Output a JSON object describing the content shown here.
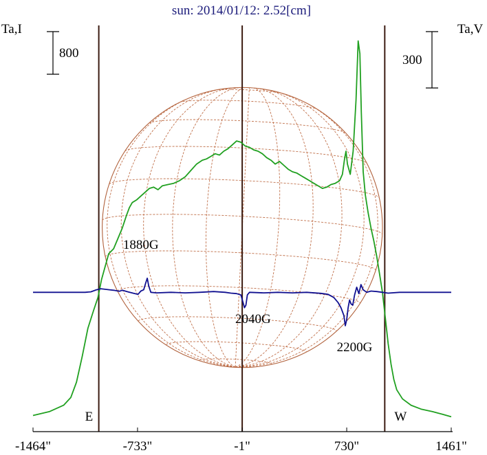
{
  "chart_data": {
    "type": "line",
    "title": "sun: 2014/01/12: 2.52[cm]",
    "left_axis_label": "Ta,I",
    "right_axis_label": "Ta,V",
    "left_scale_bar": "800",
    "right_scale_bar": "300",
    "x_ticks": [
      "-1464\"",
      "-733\"",
      "-1\"",
      "730\"",
      "1461\""
    ],
    "x_tick_values": [
      -1464,
      -733,
      -1,
      730,
      1461
    ],
    "xlim": [
      -1464,
      1461
    ],
    "limb_marks": [
      {
        "label": "E",
        "x": -1004
      },
      {
        "label": "W",
        "x": 996
      }
    ],
    "solar_disk_radius_arcsec": 980,
    "vertical_lines_x": [
      -1004,
      -1,
      996
    ],
    "annotations": [
      {
        "text": "1880G",
        "x": -710,
        "y": 0.67
      },
      {
        "text": "2040G",
        "x": 75,
        "y": 0.38
      },
      {
        "text": "2200G",
        "x": 785,
        "y": 0.27
      }
    ],
    "series": [
      {
        "name": "I",
        "color": "#20a020",
        "points": [
          [
            -1464,
            0.02
          ],
          [
            -1350,
            0.035
          ],
          [
            -1250,
            0.06
          ],
          [
            -1200,
            0.09
          ],
          [
            -1160,
            0.15
          ],
          [
            -1120,
            0.25
          ],
          [
            -1080,
            0.36
          ],
          [
            -1040,
            0.43
          ],
          [
            -1010,
            0.48
          ],
          [
            -985,
            0.55
          ],
          [
            -960,
            0.6
          ],
          [
            -935,
            0.65
          ],
          [
            -900,
            0.67
          ],
          [
            -870,
            0.71
          ],
          [
            -840,
            0.75
          ],
          [
            -810,
            0.8
          ],
          [
            -790,
            0.83
          ],
          [
            -770,
            0.85
          ],
          [
            -740,
            0.86
          ],
          [
            -710,
            0.875
          ],
          [
            -680,
            0.89
          ],
          [
            -650,
            0.905
          ],
          [
            -620,
            0.91
          ],
          [
            -590,
            0.9
          ],
          [
            -560,
            0.915
          ],
          [
            -520,
            0.92
          ],
          [
            -480,
            0.925
          ],
          [
            -440,
            0.935
          ],
          [
            -400,
            0.95
          ],
          [
            -360,
            0.975
          ],
          [
            -320,
            1.0
          ],
          [
            -280,
            1.015
          ],
          [
            -250,
            1.02
          ],
          [
            -220,
            1.03
          ],
          [
            -190,
            1.04
          ],
          [
            -160,
            1.035
          ],
          [
            -130,
            1.05
          ],
          [
            -100,
            1.06
          ],
          [
            -70,
            1.075
          ],
          [
            -40,
            1.09
          ],
          [
            -10,
            1.085
          ],
          [
            20,
            1.07
          ],
          [
            50,
            1.065
          ],
          [
            80,
            1.055
          ],
          [
            110,
            1.05
          ],
          [
            140,
            1.04
          ],
          [
            170,
            1.025
          ],
          [
            200,
            1.015
          ],
          [
            230,
            1.0
          ],
          [
            260,
            1.01
          ],
          [
            290,
            0.995
          ],
          [
            320,
            0.98
          ],
          [
            350,
            0.97
          ],
          [
            380,
            0.965
          ],
          [
            410,
            0.955
          ],
          [
            440,
            0.945
          ],
          [
            470,
            0.935
          ],
          [
            500,
            0.925
          ],
          [
            530,
            0.915
          ],
          [
            560,
            0.905
          ],
          [
            590,
            0.91
          ],
          [
            620,
            0.92
          ],
          [
            650,
            0.925
          ],
          [
            680,
            0.935
          ],
          [
            700,
            0.96
          ],
          [
            715,
            1.02
          ],
          [
            725,
            1.05
          ],
          [
            735,
            1.0
          ],
          [
            755,
            0.96
          ],
          [
            775,
            1.05
          ],
          [
            795,
            1.25
          ],
          [
            810,
            1.48
          ],
          [
            822,
            1.43
          ],
          [
            832,
            1.2
          ],
          [
            845,
            0.97
          ],
          [
            860,
            0.88
          ],
          [
            880,
            0.81
          ],
          [
            900,
            0.75
          ],
          [
            920,
            0.7
          ],
          [
            940,
            0.64
          ],
          [
            960,
            0.57
          ],
          [
            980,
            0.5
          ],
          [
            1000,
            0.4
          ],
          [
            1020,
            0.3
          ],
          [
            1040,
            0.22
          ],
          [
            1060,
            0.16
          ],
          [
            1080,
            0.12
          ],
          [
            1120,
            0.085
          ],
          [
            1180,
            0.06
          ],
          [
            1250,
            0.045
          ],
          [
            1330,
            0.035
          ],
          [
            1400,
            0.025
          ],
          [
            1461,
            0.015
          ]
        ]
      },
      {
        "name": "V",
        "color": "#101090",
        "points": [
          [
            -1464,
            0.5
          ],
          [
            -1100,
            0.5
          ],
          [
            -1060,
            0.502
          ],
          [
            -1020,
            0.51
          ],
          [
            -990,
            0.514
          ],
          [
            -960,
            0.512
          ],
          [
            -930,
            0.51
          ],
          [
            -900,
            0.508
          ],
          [
            -860,
            0.504
          ],
          [
            -840,
            0.508
          ],
          [
            -800,
            0.502
          ],
          [
            -760,
            0.496
          ],
          [
            -730,
            0.492
          ],
          [
            -710,
            0.505
          ],
          [
            -690,
            0.51
          ],
          [
            -675,
            0.538
          ],
          [
            -665,
            0.555
          ],
          [
            -655,
            0.525
          ],
          [
            -640,
            0.5
          ],
          [
            -600,
            0.498
          ],
          [
            -500,
            0.5
          ],
          [
            -400,
            0.498
          ],
          [
            -300,
            0.5
          ],
          [
            -200,
            0.503
          ],
          [
            -120,
            0.5
          ],
          [
            -80,
            0.497
          ],
          [
            -40,
            0.495
          ],
          [
            -10,
            0.49
          ],
          [
            5,
            0.46
          ],
          [
            15,
            0.44
          ],
          [
            25,
            0.45
          ],
          [
            35,
            0.49
          ],
          [
            50,
            0.5
          ],
          [
            150,
            0.498
          ],
          [
            250,
            0.5
          ],
          [
            350,
            0.498
          ],
          [
            450,
            0.5
          ],
          [
            550,
            0.496
          ],
          [
            600,
            0.492
          ],
          [
            640,
            0.48
          ],
          [
            670,
            0.46
          ],
          [
            690,
            0.44
          ],
          [
            710,
            0.41
          ],
          [
            720,
            0.37
          ],
          [
            730,
            0.395
          ],
          [
            740,
            0.44
          ],
          [
            750,
            0.47
          ],
          [
            760,
            0.455
          ],
          [
            772,
            0.45
          ],
          [
            785,
            0.49
          ],
          [
            800,
            0.52
          ],
          [
            815,
            0.495
          ],
          [
            830,
            0.53
          ],
          [
            845,
            0.51
          ],
          [
            870,
            0.5
          ],
          [
            900,
            0.505
          ],
          [
            940,
            0.503
          ],
          [
            980,
            0.5
          ],
          [
            1020,
            0.497
          ],
          [
            1100,
            0.5
          ],
          [
            1200,
            0.5
          ],
          [
            1461,
            0.5
          ]
        ]
      }
    ],
    "ylim": [
      0,
      1.5
    ]
  }
}
